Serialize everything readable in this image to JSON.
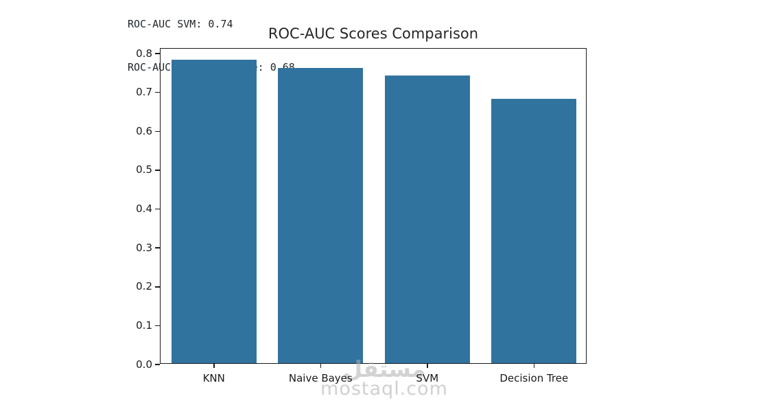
{
  "console_output": {
    "line1": "ROC-AUC SVM: 0.74",
    "line2": "ROC-AUC Decision Tree: 0.68"
  },
  "chart_data": {
    "type": "bar",
    "title": "ROC-AUC Scores Comparison",
    "categories": [
      "KNN",
      "Naive Bayes",
      "SVM",
      "Decision Tree"
    ],
    "values": [
      0.78,
      0.76,
      0.74,
      0.68
    ],
    "xlabel": "",
    "ylabel": "",
    "ylim": [
      0,
      0.8124
    ],
    "yticks": [
      "0.0",
      "0.1",
      "0.2",
      "0.3",
      "0.4",
      "0.5",
      "0.6",
      "0.7",
      "0.8"
    ],
    "grid": false,
    "legend": null,
    "bar_color": "#31739f",
    "bar_width_fraction": 0.8
  },
  "watermark": {
    "arabic": "مستقل",
    "latin": "mostaql.com"
  }
}
